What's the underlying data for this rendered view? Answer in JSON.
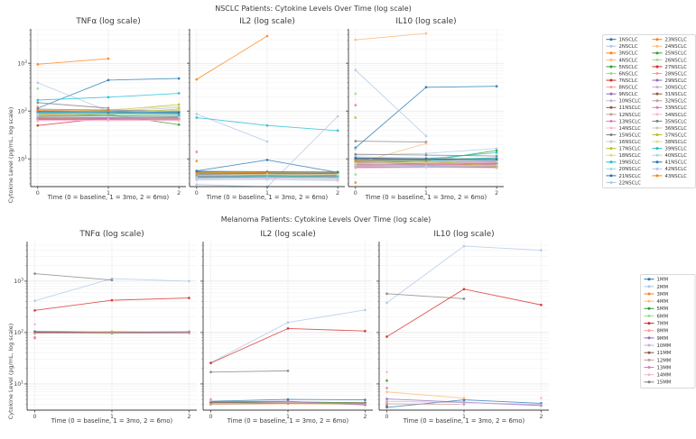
{
  "palette": [
    "#1f77b4",
    "#aec7e8",
    "#ff7f0e",
    "#ffbb78",
    "#2ca02c",
    "#98df8a",
    "#d62728",
    "#ff9896",
    "#9467bd",
    "#c5b0d5",
    "#8c564b",
    "#c49c94",
    "#e377c2",
    "#f7b6d2",
    "#7f7f7f",
    "#c7c7c7",
    "#bcbd22",
    "#dbdb8d",
    "#17becf",
    "#9edae5"
  ],
  "chart_data": [
    {
      "type": "line",
      "suptitle": "NSCLC Patients: Cytokine Levels Over Time (log scale)",
      "ylabel": "Cytokine Level (pg/mL, log scale)",
      "xlabel": "Time (0 = baseline, 1 = 3mo, 2 = 6mo)",
      "x": [
        0,
        1,
        2
      ],
      "xticks": [
        "0",
        "1",
        "2"
      ],
      "yticks_exp": [
        1,
        2,
        3
      ],
      "ylim_exp": [
        0.42,
        3.72
      ],
      "grid": true,
      "legend_position": "right",
      "legend_columns": 2,
      "patients": [
        "1NSCLC",
        "2NSCLC",
        "3NSCLC",
        "4NSCLC",
        "5NSCLC",
        "6NSCLC",
        "7NSCLC",
        "8NSCLC",
        "9NSCLC",
        "10NSCLC",
        "11NSCLC",
        "12NSCLC",
        "13NSCLC",
        "14NSCLC",
        "15NSCLC",
        "16NSCLC",
        "17NSCLC",
        "18NSCLC",
        "19NSCLC",
        "20NSCLC",
        "21NSCLC",
        "22NSCLC",
        "23NSCLC",
        "24NSCLC",
        "25NSCLC",
        "26NSCLC",
        "27NSCLC",
        "28NSCLC",
        "29NSCLC",
        "30NSCLC",
        "31NSCLC",
        "32NSCLC",
        "33NSCLC",
        "34NSCLC",
        "35NSCLC",
        "36NSCLC",
        "37NSCLC",
        "38NSCLC",
        "39NSCLC",
        "40NSCLC",
        "41NSCLC",
        "42NSCLC",
        "43NSCLC"
      ],
      "panels": [
        {
          "title": "TNFα (log scale)",
          "values": [
            [
              115,
              445,
              480
            ],
            [
              390,
              100,
              null
            ],
            [
              950,
              1250,
              null
            ],
            [
              95,
              100,
              92
            ],
            [
              78,
              85,
              52
            ],
            [
              295,
              null,
              null
            ],
            [
              50,
              72,
              68
            ],
            [
              125,
              null,
              null
            ],
            [
              72,
              70,
              73
            ],
            [
              68,
              66,
              64
            ],
            [
              75,
              73,
              76
            ],
            [
              70,
              72,
              70
            ],
            [
              66,
              68,
              66
            ],
            [
              64,
              63,
              65
            ],
            [
              150,
              115,
              null
            ],
            [
              105,
              100,
              null
            ],
            [
              98,
              103,
              137
            ],
            [
              95,
              108,
              125
            ],
            [
              170,
              195,
              235
            ],
            [
              88,
              86,
              84
            ],
            [
              100,
              98,
              96
            ],
            [
              95,
              100,
              118
            ],
            [
              85,
              null,
              null
            ],
            [
              80,
              null,
              null
            ],
            [
              90,
              88,
              86
            ],
            [
              62,
              null,
              null
            ],
            [
              70,
              68,
              72
            ],
            [
              76,
              null,
              null
            ],
            [
              67,
              69,
              68
            ],
            [
              73,
              71,
              70
            ],
            [
              82,
              80,
              78
            ],
            [
              69,
              71,
              69
            ],
            [
              74,
              72,
              74
            ],
            [
              63,
              65,
              63
            ],
            [
              110,
              105,
              100
            ],
            [
              92,
              90,
              88
            ],
            [
              86,
              90,
              110
            ],
            [
              84,
              88,
              105
            ],
            [
              93,
              91,
              89
            ],
            [
              79,
              77,
              75
            ],
            [
              97,
              95,
              93
            ],
            [
              88,
              null,
              null
            ],
            [
              102,
              100,
              null
            ]
          ]
        },
        {
          "title": "IL2 (log scale)",
          "values": [
            [
              5.6,
              9.5,
              5.2
            ],
            [
              87,
              23,
              null
            ],
            [
              460,
              3700,
              null
            ],
            [
              4.8,
              4.6,
              4.4
            ],
            [
              4.2,
              4.4,
              4.1
            ],
            [
              5.0,
              null,
              null
            ],
            [
              4.0,
              4.2,
              4.3
            ],
            [
              4.6,
              null,
              null
            ],
            [
              4.4,
              4.3,
              4.5
            ],
            [
              3.9,
              4.0,
              3.8
            ],
            [
              4.7,
              4.5,
              4.6
            ],
            [
              4.1,
              4.2,
              4.0
            ],
            [
              14,
              null,
              null
            ],
            [
              4.9,
              4.8,
              4.7
            ],
            [
              5.2,
              5.0,
              null
            ],
            [
              4.3,
              4.4,
              4.2
            ],
            [
              5.4,
              5.2,
              5.3
            ],
            [
              4.5,
              4.7,
              4.6
            ],
            [
              73,
              50,
              39
            ],
            [
              3.6,
              3.7,
              3.5
            ],
            [
              4.8,
              5.0,
              4.9
            ],
            [
              2.9,
              2.6,
              78
            ],
            [
              9,
              null,
              null
            ],
            [
              4.4,
              null,
              null
            ],
            [
              4.6,
              4.5,
              4.4
            ],
            [
              3.8,
              null,
              null
            ],
            [
              4.2,
              4.1,
              4.3
            ],
            [
              4.0,
              null,
              null
            ],
            [
              4.7,
              4.8,
              4.6
            ],
            [
              4.1,
              4.0,
              4.2
            ],
            [
              5.0,
              4.9,
              5.1
            ],
            [
              4.3,
              4.2,
              4.1
            ],
            [
              4.9,
              5.1,
              5.0
            ],
            [
              3.7,
              3.8,
              3.6
            ],
            [
              5.3,
              5.1,
              4.9
            ],
            [
              4.5,
              4.6,
              4.4
            ],
            [
              5.1,
              5.3,
              5.2
            ],
            [
              4.6,
              4.8,
              4.7
            ],
            [
              4.4,
              4.3,
              4.2
            ],
            [
              3.9,
              4.1,
              4.0
            ],
            [
              5.5,
              5.4,
              5.3
            ],
            [
              4.2,
              null,
              null
            ],
            [
              5.0,
              5.2,
              null
            ]
          ]
        },
        {
          "title": "IL10 (log scale)",
          "values": [
            [
              17,
              315,
              330
            ],
            [
              720,
              30,
              null
            ],
            [
              9,
              10,
              null
            ],
            [
              3100,
              4200,
              null
            ],
            [
              8,
              9,
              15
            ],
            [
              230,
              null,
              null
            ],
            [
              7.5,
              8,
              8
            ],
            [
              9.5,
              null,
              null
            ],
            [
              7,
              7.2,
              6.5
            ],
            [
              8.5,
              8,
              7.8
            ],
            [
              10,
              9.5,
              9
            ],
            [
              7.8,
              7.5,
              7.2
            ],
            [
              133,
              null,
              null
            ],
            [
              6.8,
              7,
              6.9
            ],
            [
              23.5,
              22.5,
              null
            ],
            [
              11,
              10.5,
              10
            ],
            [
              73,
              null,
              null
            ],
            [
              9.2,
              9.8,
              10.5
            ],
            [
              8.8,
              10,
              13.5
            ],
            [
              7.2,
              7,
              6.8
            ],
            [
              9.8,
              9.5,
              9.2
            ],
            [
              12,
              13,
              16.5
            ],
            [
              3.2,
              null,
              null
            ],
            [
              8,
              21,
              null
            ],
            [
              9,
              8.8,
              8.6
            ],
            [
              4.7,
              null,
              null
            ],
            [
              7.4,
              7.6,
              7.5
            ],
            [
              8.2,
              null,
              null
            ],
            [
              6.6,
              6.8,
              6.7
            ],
            [
              7.7,
              7.5,
              7.3
            ],
            [
              10.5,
              10,
              9.8
            ],
            [
              7.1,
              7.3,
              7
            ],
            [
              8.4,
              8.2,
              8.3
            ],
            [
              6.4,
              6.6,
              6.5
            ],
            [
              12.5,
              12,
              11.5
            ],
            [
              9.4,
              9.2,
              9
            ],
            [
              8.6,
              9,
              7
            ],
            [
              8,
              8.4,
              8.8
            ],
            [
              9.6,
              9.4,
              10.5
            ],
            [
              7.3,
              7.1,
              7.4
            ],
            [
              10.2,
              10,
              9.7
            ],
            [
              16,
              null,
              null
            ],
            [
              9.1,
              8.9,
              null
            ]
          ]
        }
      ]
    },
    {
      "type": "line",
      "suptitle": "Melanoma Patients: Cytokine Levels Over Time (log scale)",
      "ylabel": "Cytokine Level (pg/mL, log scale)",
      "xlabel": "Time (0 = baseline, 1 = 3mo, 2 = 6mo)",
      "x": [
        0,
        1,
        2
      ],
      "xticks": [
        "0",
        "1",
        "2"
      ],
      "yticks_exp": [
        1,
        2,
        3
      ],
      "ylim_exp": [
        0.49,
        3.77
      ],
      "grid": true,
      "legend_position": "right",
      "legend_columns": 1,
      "patients": [
        "1MM",
        "2MM",
        "3MM",
        "4MM",
        "5MM",
        "6MM",
        "7MM",
        "8MM",
        "9MM",
        "10MM",
        "11MM",
        "12MM",
        "13MM",
        "14MM",
        "15MM"
      ],
      "panels": [
        {
          "title": "TNFα (log scale)",
          "values": [
            [
              105,
              103,
              100
            ],
            [
              415,
              1120,
              1000
            ],
            [
              102,
              104,
              102
            ],
            [
              100,
              105,
              103
            ],
            [
              98,
              97,
              99
            ],
            [
              96,
              null,
              null
            ],
            [
              270,
              425,
              470
            ],
            [
              82,
              null,
              null
            ],
            [
              103,
              100,
              104
            ],
            [
              99,
              98,
              101
            ],
            [
              101,
              100,
              99
            ],
            [
              97,
              99,
              98
            ],
            [
              78,
              null,
              null
            ],
            [
              145,
              null,
              null
            ],
            [
              1400,
              1050,
              null
            ]
          ]
        },
        {
          "title": "IL2 (log scale)",
          "values": [
            [
              4.6,
              5.0,
              4.9
            ],
            [
              26,
              157,
              275
            ],
            [
              4.2,
              4.3,
              4.2
            ],
            [
              4.0,
              4.1,
              4.0
            ],
            [
              4.4,
              4.5,
              4.3
            ],
            [
              4.1,
              null,
              null
            ],
            [
              25.5,
              120,
              107
            ],
            [
              4.3,
              null,
              null
            ],
            [
              4.5,
              4.6,
              3.9
            ],
            [
              4.2,
              4.4,
              4.1
            ],
            [
              4.4,
              4.2,
              4.3
            ],
            [
              4.0,
              4.2,
              4.1
            ],
            [
              5.0,
              null,
              null
            ],
            [
              4.7,
              null,
              null
            ],
            [
              17,
              18,
              null
            ]
          ]
        },
        {
          "title": "IL10 (log scale)",
          "values": [
            [
              3.5,
              4.9,
              4.2
            ],
            [
              380,
              4800,
              4000
            ],
            [
              4.0,
              null,
              null
            ],
            [
              7.0,
              5.3,
              null
            ],
            [
              11.6,
              null,
              null
            ],
            [
              4.3,
              null,
              null
            ],
            [
              83,
              700,
              345
            ],
            [
              4.5,
              null,
              null
            ],
            [
              5.1,
              4.4,
              3.8
            ],
            [
              4.6,
              4.3,
              4.0
            ],
            [
              3.7,
              null,
              null
            ],
            [
              4.1,
              4.0,
              null
            ],
            [
              8.3,
              null,
              null
            ],
            [
              17,
              null,
              5.3
            ],
            [
              570,
              455,
              null
            ]
          ]
        }
      ]
    }
  ]
}
